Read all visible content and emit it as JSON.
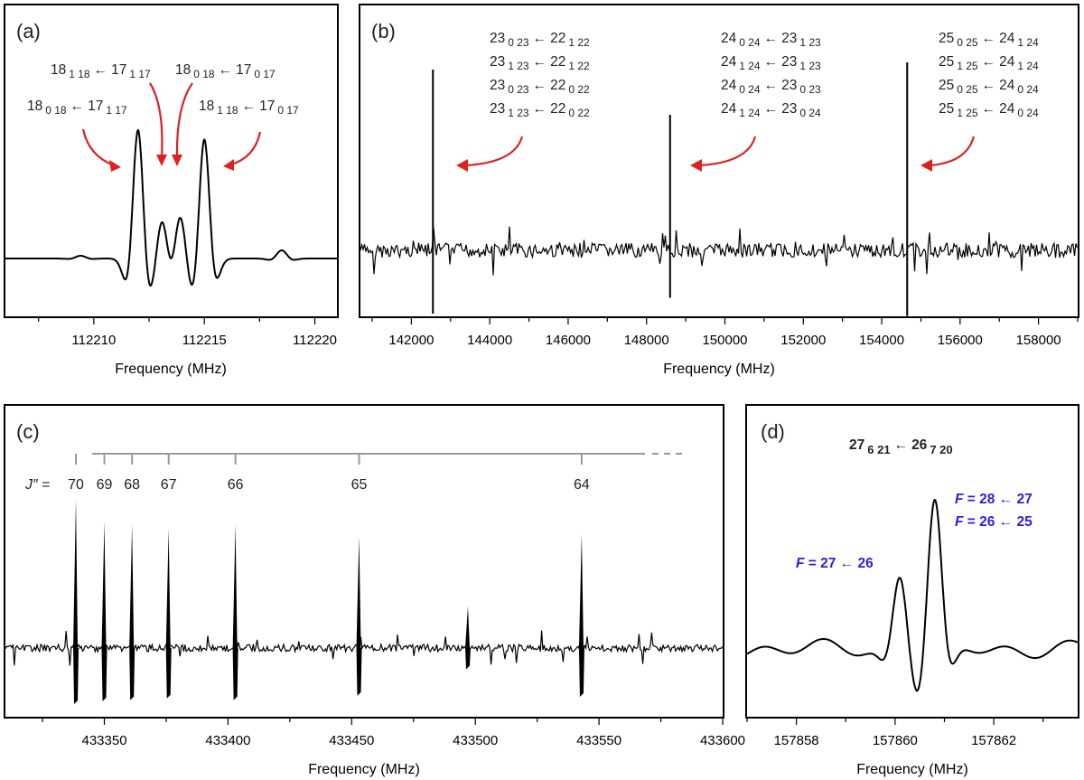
{
  "chart_data": [
    {
      "panel": "(a)",
      "type": "line",
      "xlabel": "Frequency (MHz)",
      "ylabel": "",
      "xlim": [
        112206,
        112221
      ],
      "xticks": [
        112210,
        112215,
        112220
      ],
      "peaks": [
        {
          "x": 112212.0,
          "height": 0.95
        },
        {
          "x": 112213.1,
          "height": 0.3
        },
        {
          "x": 112213.9,
          "height": 0.33
        },
        {
          "x": 112215.0,
          "height": 0.88
        },
        {
          "x": 112218.5,
          "height": 0.06
        },
        {
          "x": 112209.4,
          "height": 0.02
        }
      ],
      "annotations": [
        {
          "text": "18 1 18 ← 17 1 17",
          "target_x": 112213.1
        },
        {
          "text": "18 0 18 ← 17 0 17",
          "target_x": 112213.9
        },
        {
          "text": "18 0 18 ← 17 1 17",
          "target_x": 112212.0
        },
        {
          "text": "18 1 18 ← 17 0 17",
          "target_x": 112215.0
        }
      ]
    },
    {
      "panel": "(b)",
      "type": "line",
      "xlabel": "Frequency (MHz)",
      "ylabel": "",
      "xlim": [
        140700,
        159000
      ],
      "xticks": [
        142000,
        144000,
        146000,
        148000,
        150000,
        152000,
        154000,
        156000,
        158000
      ],
      "peaks": [
        {
          "x": 142550,
          "height": 1.0
        },
        {
          "x": 148600,
          "height": 0.75
        },
        {
          "x": 154650,
          "height": 1.04
        }
      ],
      "annotations": [
        {
          "lines": [
            "23 0 23 ← 22 1 22",
            "23 1 23 ← 22 1 22",
            "23 0 23 ← 22 0 22",
            "23 1 23 ← 22 0 22"
          ],
          "target_x": 142550
        },
        {
          "lines": [
            "24 0 24 ← 23 1 23",
            "24 1 24 ← 23 1 23",
            "24 0 24 ← 23 0 23",
            "24 1 24 ← 23 0 24"
          ],
          "target_x": 148600
        },
        {
          "lines": [
            "25 0 25 ← 24 1 24",
            "25 1 25 ← 24 1 24",
            "25 0 25 ← 24 0 24",
            "25 1 25 ← 24 0 24"
          ],
          "target_x": 154650
        }
      ]
    },
    {
      "panel": "(c)",
      "type": "line",
      "xlabel": "Frequency (MHz)",
      "ylabel": "",
      "xlim": [
        433310,
        433600
      ],
      "xticks": [
        433350,
        433400,
        433450,
        433500,
        433550,
        433600
      ],
      "peaks": [
        {
          "x": 433338.5,
          "height": 1.0,
          "J": "70"
        },
        {
          "x": 433350.0,
          "height": 0.85,
          "J": "69"
        },
        {
          "x": 433361.2,
          "height": 0.83,
          "J": "68"
        },
        {
          "x": 433376.0,
          "height": 0.8,
          "J": "67"
        },
        {
          "x": 433403.0,
          "height": 0.83,
          "J": "66"
        },
        {
          "x": 433453.0,
          "height": 0.75,
          "J": "65"
        },
        {
          "x": 433543.0,
          "height": 0.77,
          "J": "64"
        },
        {
          "x": 433497.0,
          "height": 0.28,
          "J": ""
        }
      ],
      "ladder_label": "J″ =",
      "ladder_labels": [
        "70",
        "69",
        "68",
        "67",
        "66",
        "65",
        "64"
      ]
    },
    {
      "panel": "(d)",
      "type": "line",
      "xlabel": "Frequency (MHz)",
      "ylabel": "",
      "xlim": [
        157857,
        157863.7
      ],
      "xticks": [
        157858,
        157860,
        157862
      ],
      "peaks": [
        {
          "x": 157860.1,
          "height": 0.52
        },
        {
          "x": 157860.8,
          "height": 1.0
        }
      ],
      "title_transition": "27 6 21 ← 26 7 20",
      "annotations": [
        {
          "text": "F = 27 ← 26",
          "target_x": 157860.1
        },
        {
          "text": "F = 28 ← 27",
          "target_x": 157860.8
        },
        {
          "text": "F = 26 ← 25",
          "target_x": 157860.8
        }
      ]
    }
  ],
  "colors": {
    "arrow": "#e02020",
    "hyperfine_label": "#2a1ee0",
    "ladder": "#999999",
    "trace": "#000000"
  },
  "text": {
    "a": {
      "label": "(a)",
      "l1": {
        "n": "18",
        "k": "1 18",
        "n2": "17",
        "k2": "1 17"
      },
      "l2": {
        "n": "18",
        "k": "0 18",
        "n2": "17",
        "k2": "0 17"
      },
      "l3": {
        "n": "18",
        "k": "0 18",
        "n2": "17",
        "k2": "1 17"
      },
      "l4": {
        "n": "18",
        "k": "1 18",
        "n2": "17",
        "k2": "0 17"
      },
      "xlabel": "Frequency (MHz)",
      "ticks": [
        "112210",
        "112215",
        "112220"
      ]
    },
    "b": {
      "label": "(b)",
      "g1": [
        {
          "n": "23",
          "k": "0 23",
          "n2": "22",
          "k2": "1 22"
        },
        {
          "n": "23",
          "k": "1 23",
          "n2": "22",
          "k2": "1 22"
        },
        {
          "n": "23",
          "k": "0 23",
          "n2": "22",
          "k2": "0 22"
        },
        {
          "n": "23",
          "k": "1 23",
          "n2": "22",
          "k2": "0 22"
        }
      ],
      "g2": [
        {
          "n": "24",
          "k": "0 24",
          "n2": "23",
          "k2": "1 23"
        },
        {
          "n": "24",
          "k": "1 24",
          "n2": "23",
          "k2": "1 23"
        },
        {
          "n": "24",
          "k": "0 24",
          "n2": "23",
          "k2": "0 23"
        },
        {
          "n": "24",
          "k": "1 24",
          "n2": "23",
          "k2": "0 24"
        }
      ],
      "g3": [
        {
          "n": "25",
          "k": "0 25",
          "n2": "24",
          "k2": "1 24"
        },
        {
          "n": "25",
          "k": "1 25",
          "n2": "24",
          "k2": "1 24"
        },
        {
          "n": "25",
          "k": "0 25",
          "n2": "24",
          "k2": "0 24"
        },
        {
          "n": "25",
          "k": "1 25",
          "n2": "24",
          "k2": "0 24"
        }
      ],
      "xlabel": "Frequency (MHz)",
      "ticks": [
        "142000",
        "144000",
        "146000",
        "148000",
        "150000",
        "152000",
        "154000",
        "156000",
        "158000"
      ]
    },
    "c": {
      "label": "(c)",
      "jprefix": "J″",
      "jeq": " = ",
      "j": [
        "70",
        "69",
        "68",
        "67",
        "66",
        "65",
        "64"
      ],
      "xlabel": "Frequency (MHz)",
      "ticks": [
        "433350",
        "433400",
        "433450",
        "433500",
        "433550",
        "433600"
      ]
    },
    "d": {
      "label": "(d)",
      "title": {
        "n": "27",
        "k": "6 21",
        "n2": "26",
        "k2": "7 20"
      },
      "f1": {
        "F": "F",
        "rest": " = 27 ← 26"
      },
      "f2": {
        "F": "F",
        "rest": " = 28 ← 27"
      },
      "f3": {
        "F": "F",
        "rest": " = 26 ← 25"
      },
      "xlabel": "Frequency (MHz)",
      "ticks": [
        "157858",
        "157860",
        "157862"
      ]
    }
  }
}
